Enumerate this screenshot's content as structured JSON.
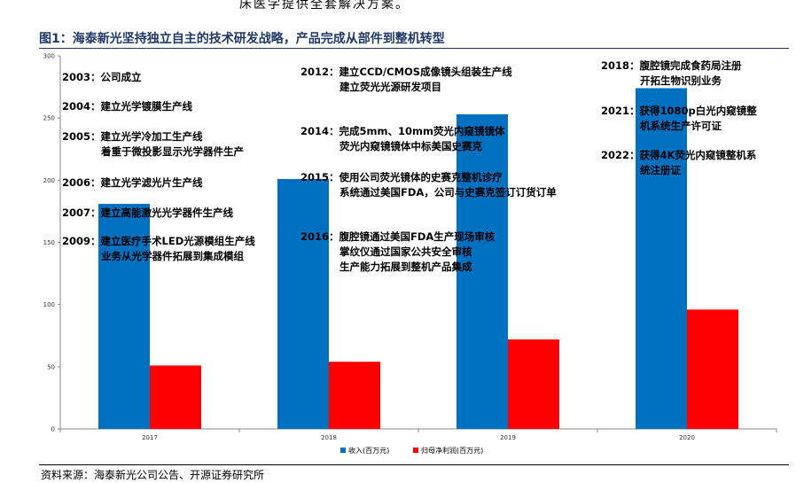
{
  "header_text": "床医学提供全套解决方案。",
  "figure_title": "图1：海泰新光坚持独立自主的技术研发战略，产品完成从部件到整机转型",
  "source": "资料来源：海泰新光公司公告、开源证券研究所",
  "chart_data": {
    "type": "bar",
    "categories": [
      "2017",
      "2018",
      "2019",
      "2020"
    ],
    "series": [
      {
        "name": "收入(百万元)",
        "color": "#0070c0",
        "values": [
          181,
          201,
          253,
          274
        ]
      },
      {
        "name": "归母净利润(百万元)",
        "color": "#ff0000",
        "values": [
          51,
          54,
          72,
          96
        ]
      }
    ],
    "ylim": [
      0,
      300
    ],
    "yticks": [
      0,
      50,
      100,
      150,
      200,
      250,
      300
    ],
    "legend_position": "bottom",
    "grid": false
  },
  "annotations": [
    {
      "id": "2003",
      "lines": [
        "2003：公司成立"
      ]
    },
    {
      "id": "2004",
      "lines": [
        "2004：建立光学镀膜生产线"
      ]
    },
    {
      "id": "2005",
      "lines": [
        "2005：建立光学冷加工生产线",
        "着重于微投影显示光学器件生产"
      ]
    },
    {
      "id": "2006",
      "lines": [
        "2006：建立光学滤光片生产线"
      ]
    },
    {
      "id": "2007",
      "lines": [
        "2007：建立高能激光光学器件生产线"
      ]
    },
    {
      "id": "2009",
      "lines": [
        "2009：建立医疗手术LED光源模组生产线",
        "业务从光学器件拓展到集成模组"
      ]
    },
    {
      "id": "2012",
      "lines": [
        "2012：建立CCD/CMOS成像镜头组装生产线",
        "建立荧光光源研发项目"
      ]
    },
    {
      "id": "2014",
      "lines": [
        "2014：完成5mm、10mm荧光内窥镜镜体",
        "荧光内窥镜镜体中标美国史赛克"
      ]
    },
    {
      "id": "2015",
      "lines": [
        "2015：使用公司荧光镜体的史赛克整机诊疗",
        "系统通过美国FDA，公司与史赛克签订订货订单"
      ]
    },
    {
      "id": "2016",
      "lines": [
        "2016：腹腔镜通过美国FDA生产现场审核",
        "掌纹仪通过国家公共安全审核",
        "生产能力拓展到整机产品集成"
      ]
    },
    {
      "id": "2018",
      "lines": [
        "2018：腹腔镜完成食药局注册",
        "开拓生物识别业务"
      ]
    },
    {
      "id": "2021",
      "lines": [
        "2021：获得1080p白光内窥镜整",
        "机系统生产许可证"
      ]
    },
    {
      "id": "2022",
      "lines": [
        "2022：获得4K荧光内窥镜整机系",
        "统注册证"
      ]
    }
  ]
}
